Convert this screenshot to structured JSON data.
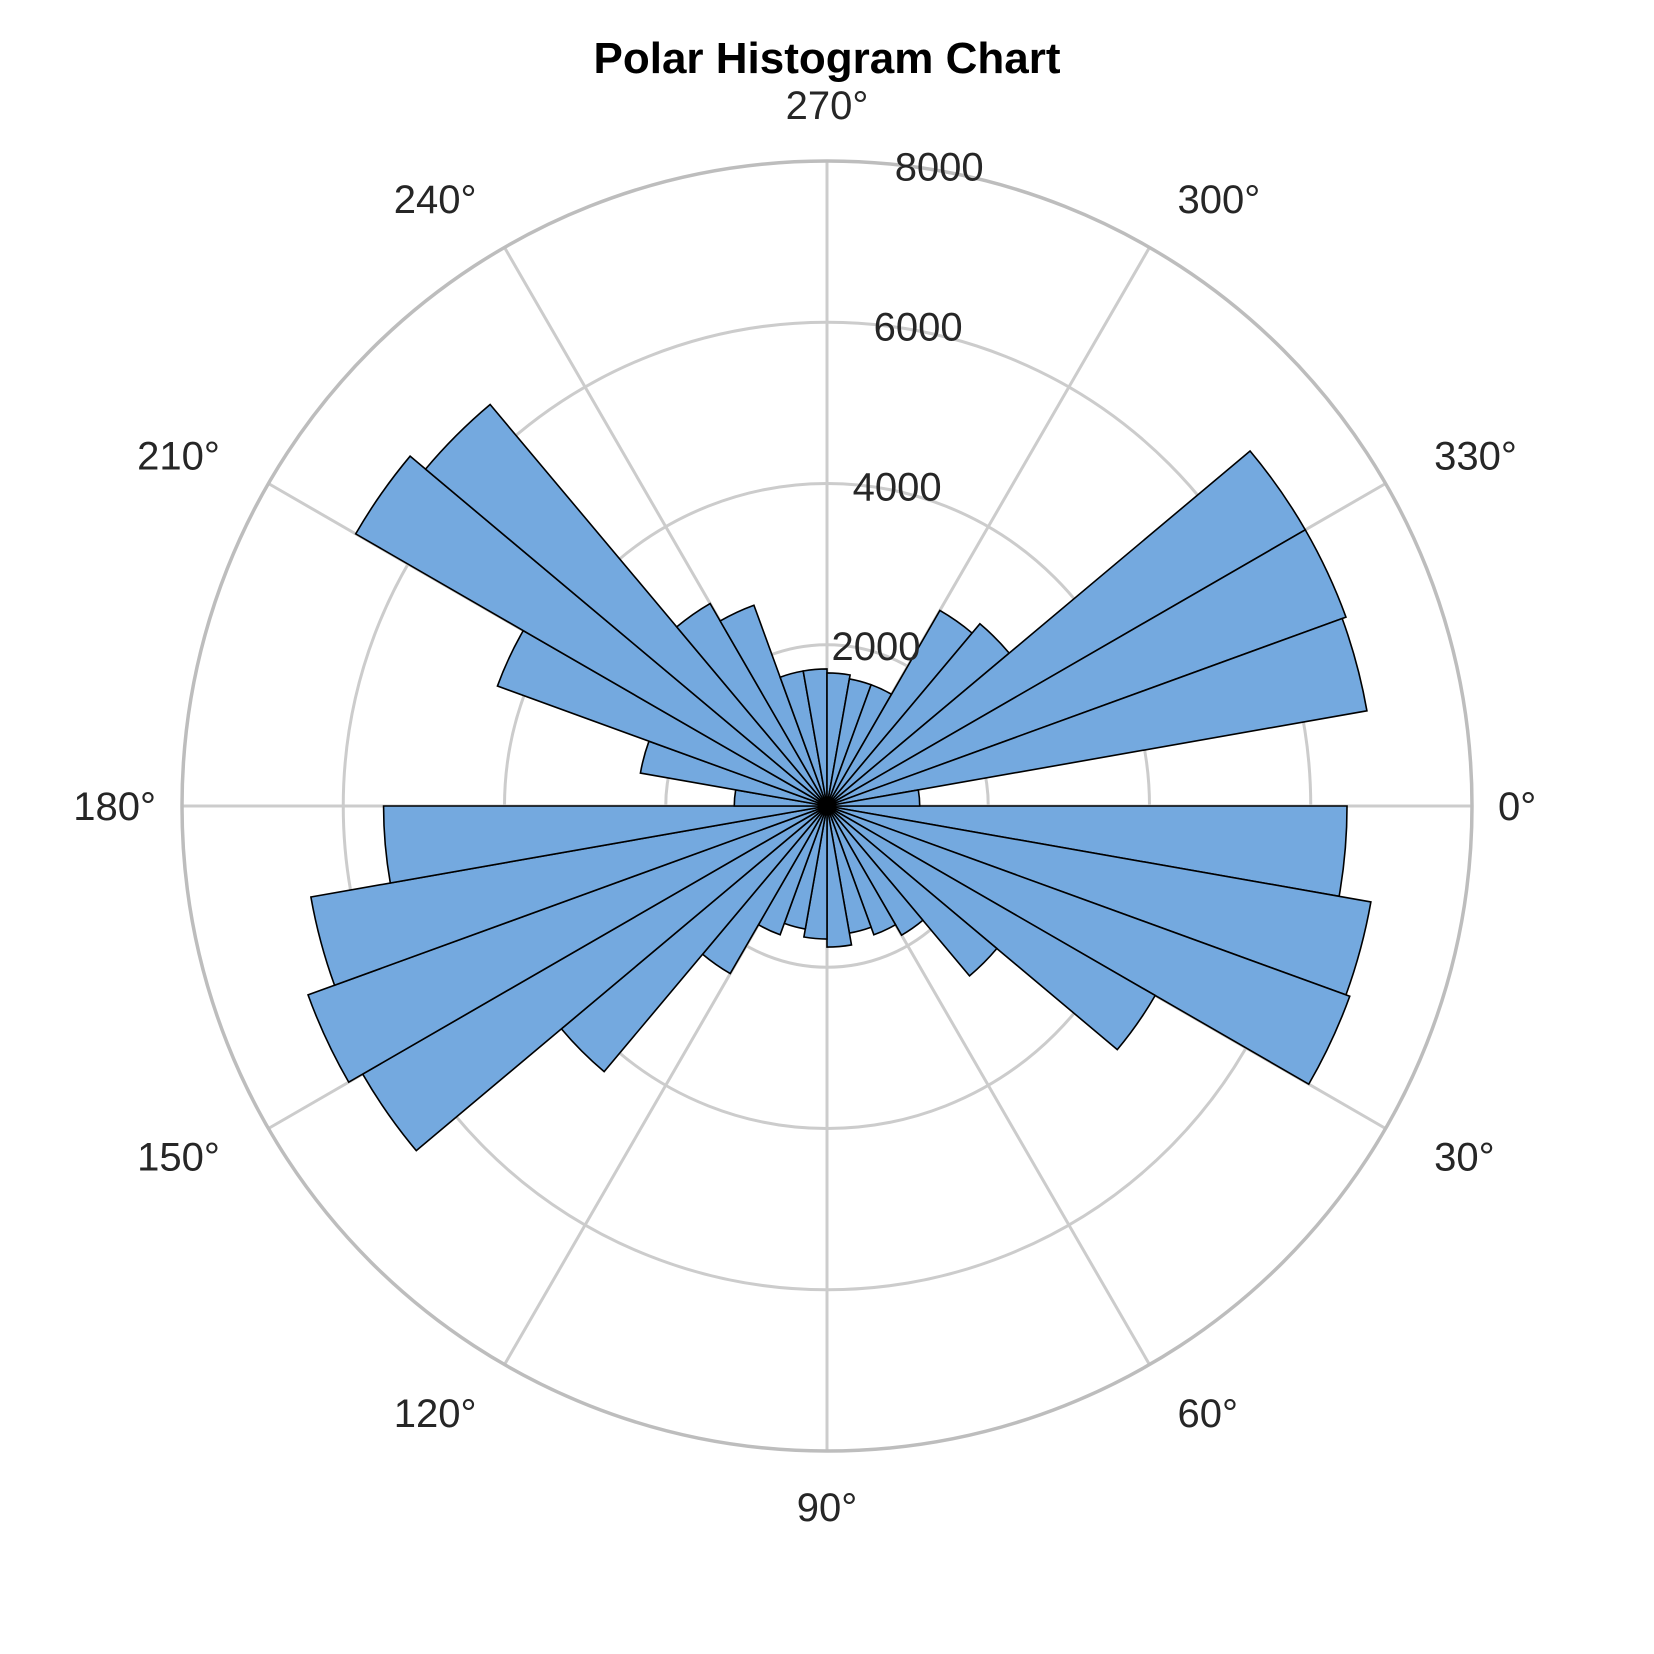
{
  "chart_data": {
    "type": "bar",
    "projection": "polar",
    "title": "Polar Histogram Chart",
    "theta_direction": "clockwise",
    "theta_zero_location": "right",
    "rlim": [
      0,
      8000
    ],
    "r_ticks": [
      2000,
      4000,
      6000,
      8000
    ],
    "r_tick_labels": [
      "2000",
      "4000",
      "6000",
      "8000"
    ],
    "theta_ticks": [
      0,
      30,
      60,
      90,
      120,
      150,
      180,
      210,
      240,
      270,
      300,
      330
    ],
    "theta_tick_labels": [
      "0°",
      "30°",
      "60°",
      "90°",
      "120°",
      "150°",
      "180°",
      "210°",
      "240°",
      "270°",
      "300°",
      "330°"
    ],
    "grid": true,
    "bar_color": "#74a9df",
    "edge_color": "#000000",
    "bin_width_deg": 10,
    "bin_starts_deg": [
      0,
      10,
      20,
      30,
      40,
      50,
      60,
      70,
      80,
      90,
      100,
      110,
      120,
      130,
      140,
      150,
      160,
      170,
      180,
      190,
      200,
      210,
      220,
      230,
      240,
      250,
      260,
      270,
      280,
      290,
      300,
      310,
      320,
      330,
      340,
      350
    ],
    "values": [
      6450,
      6850,
      6900,
      4700,
      2750,
      1850,
      1700,
      1600,
      1750,
      1650,
      1550,
      1700,
      2400,
      4300,
      6650,
      6850,
      6500,
      5500,
      1150,
      2350,
      4350,
      6750,
      6500,
      2900,
      2650,
      1700,
      1700,
      1650,
      1600,
      1600,
      2800,
      2950,
      6850,
      6850,
      6800,
      1150
    ]
  }
}
